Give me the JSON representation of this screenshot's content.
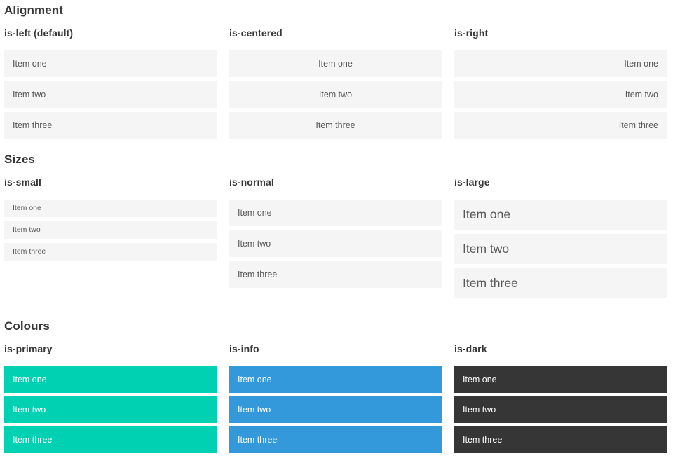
{
  "sections": [
    {
      "title": "Alignment",
      "examples": [
        {
          "label": "is-left (default)",
          "variant": "left",
          "items": [
            "Item one",
            "Item two",
            "Item three"
          ]
        },
        {
          "label": "is-centered",
          "variant": "centered",
          "items": [
            "Item one",
            "Item two",
            "Item three"
          ]
        },
        {
          "label": "is-right",
          "variant": "right",
          "items": [
            "Item one",
            "Item two",
            "Item three"
          ]
        }
      ]
    },
    {
      "title": "Sizes",
      "examples": [
        {
          "label": "is-small",
          "variant": "small",
          "items": [
            "Item one",
            "Item two",
            "Item three"
          ]
        },
        {
          "label": "is-normal",
          "variant": "normal",
          "items": [
            "Item one",
            "Item two",
            "Item three"
          ]
        },
        {
          "label": "is-large",
          "variant": "large",
          "items": [
            "Item one",
            "Item two",
            "Item three"
          ]
        }
      ]
    },
    {
      "title": "Colours",
      "examples": [
        {
          "label": "is-primary",
          "variant": "primary",
          "items": [
            "Item one",
            "Item two",
            "Item three"
          ]
        },
        {
          "label": "is-info",
          "variant": "info",
          "items": [
            "Item one",
            "Item two",
            "Item three"
          ]
        },
        {
          "label": "is-dark",
          "variant": "dark",
          "items": [
            "Item one",
            "Item two",
            "Item three"
          ]
        }
      ]
    }
  ],
  "colors": {
    "primary": "#00d1b2",
    "info": "#3499db",
    "dark": "#363636",
    "item_bg": "#f5f5f5",
    "item_text": "#585858",
    "heading": "#363636",
    "light_text": "#ffffff",
    "page_bg": "#ffffff"
  }
}
